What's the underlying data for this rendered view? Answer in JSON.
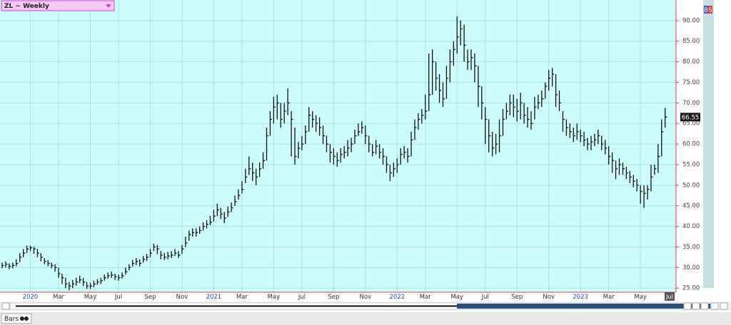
{
  "chart_data": {
    "type": "hlc",
    "title": "ZL ~ Weekly",
    "buttons": [
      "B",
      "S"
    ],
    "cursor_label": "Jul",
    "last_value_label": "66.55",
    "footer_tab": "Bars",
    "color": "#111111",
    "grid": true,
    "ylim": [
      24,
      95
    ],
    "yticks": [
      {
        "value": 25,
        "label": "25.00"
      },
      {
        "value": 30,
        "label": "30.00"
      },
      {
        "value": 35,
        "label": "35.00"
      },
      {
        "value": 40,
        "label": "40.00"
      },
      {
        "value": 45,
        "label": "45.00"
      },
      {
        "value": 50,
        "label": "50.00"
      },
      {
        "value": 55,
        "label": "55.00"
      },
      {
        "value": 60,
        "label": "60.00"
      },
      {
        "value": 65,
        "label": "65.00"
      },
      {
        "value": 70,
        "label": "70.00"
      },
      {
        "value": 75,
        "label": "75.00"
      },
      {
        "value": 80,
        "label": "80.00"
      },
      {
        "value": 85,
        "label": "85.00"
      },
      {
        "value": 90,
        "label": "90.00"
      }
    ],
    "categories": [
      null,
      null,
      null,
      null,
      null,
      null,
      null,
      null,
      "2020",
      null,
      null,
      null,
      null,
      null,
      null,
      null,
      "Mar",
      null,
      null,
      null,
      null,
      null,
      null,
      null,
      null,
      "May",
      null,
      null,
      null,
      null,
      null,
      null,
      null,
      "Jul",
      null,
      null,
      null,
      null,
      null,
      null,
      null,
      null,
      "Sep",
      null,
      null,
      null,
      null,
      null,
      null,
      null,
      null,
      "Nov",
      null,
      null,
      null,
      null,
      null,
      null,
      null,
      null,
      "2021",
      null,
      null,
      null,
      null,
      null,
      null,
      null,
      "Mar",
      null,
      null,
      null,
      null,
      null,
      null,
      null,
      null,
      "May",
      null,
      null,
      null,
      null,
      null,
      null,
      null,
      "Jul",
      null,
      null,
      null,
      null,
      null,
      null,
      null,
      null,
      "Sep",
      null,
      null,
      null,
      null,
      null,
      null,
      null,
      null,
      "Nov",
      null,
      null,
      null,
      null,
      null,
      null,
      null,
      null,
      "2022",
      null,
      null,
      null,
      null,
      null,
      null,
      null,
      "Mar",
      null,
      null,
      null,
      null,
      null,
      null,
      null,
      null,
      "May",
      null,
      null,
      null,
      null,
      null,
      null,
      null,
      "Jul",
      null,
      null,
      null,
      null,
      null,
      null,
      null,
      null,
      "Sep",
      null,
      null,
      null,
      null,
      null,
      null,
      null,
      null,
      "Nov",
      null,
      null,
      null,
      null,
      null,
      null,
      null,
      null,
      "2023",
      null,
      null,
      null,
      null,
      null,
      null,
      null,
      "Mar",
      null,
      null,
      null,
      null,
      null,
      null,
      null,
      null,
      "May",
      null,
      null,
      null,
      null,
      null,
      null,
      null
    ],
    "close": [
      30.5,
      30.8,
      30.3,
      30.5,
      31,
      32.5,
      33.5,
      34.5,
      34.8,
      34.5,
      33.5,
      32.5,
      31.5,
      31,
      30.5,
      30,
      28.5,
      27.5,
      26,
      25.5,
      26,
      26.5,
      27,
      26.5,
      25.5,
      25.5,
      26,
      26.5,
      26.8,
      27.5,
      28,
      28.2,
      27.8,
      27.5,
      28,
      29,
      30,
      31,
      31.5,
      31,
      32,
      32.5,
      33.5,
      35,
      34.5,
      33,
      32.5,
      32.8,
      33,
      33.5,
      33,
      34.5,
      36,
      38,
      38.5,
      38.5,
      39,
      40,
      40.5,
      41,
      42.5,
      44,
      43,
      42,
      43.5,
      44.5,
      46,
      47.5,
      49,
      52,
      54,
      53,
      52,
      54,
      56,
      62,
      66,
      69,
      70,
      66,
      68,
      70,
      66,
      57,
      59,
      60,
      63,
      67,
      66,
      65,
      64,
      62,
      60,
      58,
      57,
      56,
      57.5,
      58,
      59,
      60,
      62,
      63,
      64,
      62,
      60,
      58,
      59.5,
      58,
      57,
      55,
      53,
      54,
      55,
      57.5,
      58,
      57,
      61,
      64,
      66,
      67,
      68,
      72,
      80,
      76,
      73,
      71,
      76,
      80,
      83,
      86,
      88,
      84,
      80,
      81,
      79,
      74,
      70,
      66,
      62,
      59,
      60,
      62,
      66,
      68,
      70,
      69,
      68,
      70,
      67,
      66,
      65,
      69,
      70,
      71,
      74,
      76,
      77,
      72,
      70,
      66,
      64,
      63,
      62,
      63,
      62,
      61,
      60,
      60.5,
      61,
      62,
      60,
      59,
      57,
      56,
      54,
      55,
      54,
      53,
      52,
      51,
      50,
      48.5,
      48,
      49,
      52,
      54,
      57,
      63,
      66.55
    ],
    "high": [
      31.2,
      31.5,
      31,
      31.2,
      32,
      33.5,
      34.5,
      35.3,
      35.3,
      35,
      34.5,
      33.5,
      32.3,
      31.8,
      31.2,
      30.8,
      30,
      28.5,
      27.5,
      26.5,
      27,
      27.5,
      28,
      27.5,
      26.5,
      26.3,
      26.8,
      27.2,
      27.5,
      28.3,
      28.8,
      29,
      28.5,
      28.3,
      28.8,
      30,
      30.8,
      31.8,
      32.3,
      32,
      32.8,
      33.3,
      34.5,
      35.8,
      35.5,
      34,
      33.5,
      33.8,
      34,
      34.5,
      34,
      35.5,
      37.5,
      39,
      39.5,
      39.5,
      40,
      41,
      41.5,
      42.5,
      44,
      45.5,
      44.5,
      43.5,
      44.8,
      45.8,
      47.5,
      49,
      51,
      54,
      57,
      55.5,
      54,
      55.5,
      58,
      64,
      68,
      71.5,
      72,
      70,
      70,
      73.5,
      68,
      64,
      60.5,
      62,
      64.5,
      69,
      68,
      67,
      66.5,
      64.5,
      62,
      60,
      59,
      58,
      59,
      59.5,
      61,
      61.5,
      63.5,
      65,
      65.5,
      64.5,
      62,
      60,
      61,
      60,
      59,
      57,
      55,
      55.5,
      56.5,
      59,
      59.5,
      59,
      63,
      66,
      67.5,
      68.5,
      72,
      82,
      83,
      80,
      77,
      75,
      79,
      83,
      85,
      91,
      90,
      89,
      83,
      83,
      82,
      79,
      74,
      69,
      66,
      63,
      62.5,
      66,
      68.5,
      70,
      72,
      72,
      71,
      72.5,
      70,
      69,
      68,
      71.5,
      72,
      73,
      75,
      78,
      78.5,
      77,
      73,
      68,
      66,
      65,
      64,
      65,
      63.5,
      63,
      61.5,
      62,
      62.5,
      63.5,
      62,
      61,
      59.5,
      58,
      56,
      56.5,
      55.5,
      54.5,
      53.5,
      52.5,
      51.5,
      50,
      50,
      50,
      55,
      55,
      60,
      66,
      68.8
    ],
    "low": [
      29.8,
      30,
      29.6,
      29.8,
      30.3,
      31.3,
      32.5,
      33.5,
      34,
      33.3,
      32.5,
      31.5,
      30.8,
      30.3,
      29.8,
      29,
      27.5,
      26,
      25,
      24.5,
      25,
      25.6,
      26.2,
      25.5,
      24.8,
      24.8,
      25.2,
      25.8,
      26,
      26.8,
      27.3,
      27.5,
      27,
      26.8,
      27.3,
      28.3,
      29.3,
      30.2,
      30.6,
      30.3,
      31.2,
      31.6,
      32.5,
      34,
      33.3,
      32,
      31.8,
      32,
      32.3,
      32.8,
      32.3,
      33.3,
      35,
      36.5,
      37.5,
      37.5,
      38.2,
      39,
      39.5,
      40.3,
      41.2,
      42.5,
      41.8,
      40.8,
      42.3,
      43.5,
      45,
      46.5,
      48,
      50.5,
      52.5,
      51,
      50,
      52,
      54,
      56,
      62,
      65,
      66,
      64,
      65,
      67,
      57,
      55,
      56.5,
      58.5,
      60,
      63,
      64,
      63,
      62,
      60,
      58,
      55.5,
      55,
      54.5,
      55.5,
      56.5,
      57,
      58,
      60,
      62,
      62.5,
      60,
      58,
      57,
      57.5,
      56.5,
      55,
      53,
      51,
      52,
      53,
      55,
      56.5,
      55.5,
      57,
      61,
      63.5,
      65,
      66,
      68,
      72,
      73,
      70,
      69,
      71,
      75,
      79,
      82,
      84,
      80,
      78,
      78,
      75,
      69,
      66,
      60,
      58,
      57,
      57.5,
      58,
      62,
      66,
      67,
      66.5,
      65.5,
      66,
      65,
      64,
      63.5,
      66,
      68.5,
      69,
      71,
      73,
      74,
      69,
      68,
      63,
      62,
      61.5,
      60.5,
      61,
      60.5,
      59.5,
      58.5,
      58.5,
      59.5,
      60,
      58.5,
      57.5,
      55,
      53,
      51.5,
      52.5,
      52.5,
      51.5,
      50.5,
      49.5,
      48.5,
      45.5,
      44.5,
      46.5,
      48.5,
      52.5,
      53,
      57,
      64
    ]
  }
}
